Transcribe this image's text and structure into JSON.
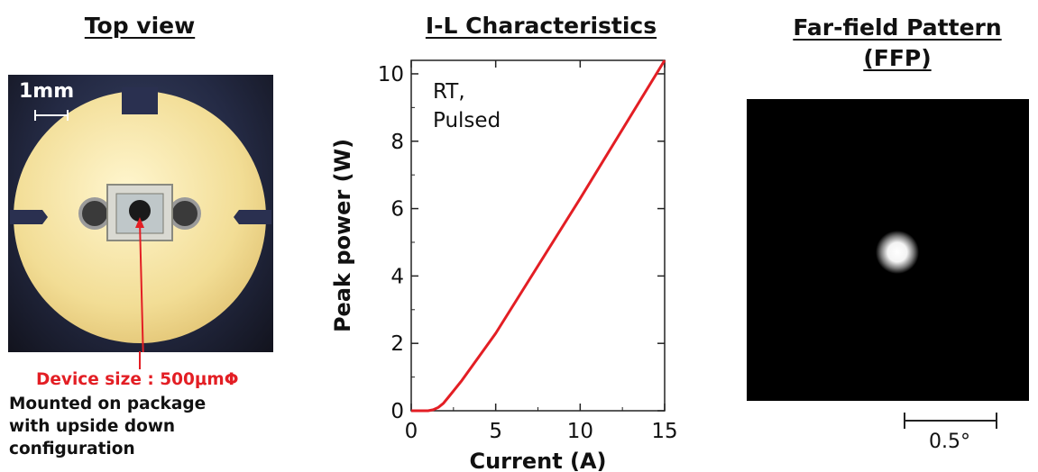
{
  "titles": {
    "top_view": "Top view",
    "il": "I-L Characteristics",
    "ffp_line1": "Far-field Pattern",
    "ffp_line2": "(FFP)"
  },
  "photo": {
    "scale_label": "1mm",
    "device_caption": "Device size : 500μmΦ",
    "mount_caption": [
      "Mounted on package",
      "with upside down",
      "configuration"
    ]
  },
  "ffp": {
    "scale_label": "0.5°"
  },
  "chart_data": {
    "type": "line",
    "title": "I-L Characteristics",
    "xlabel": "Current (A)",
    "ylabel": "Peak power (W)",
    "xlim": [
      0,
      15
    ],
    "ylim": [
      0,
      10.4
    ],
    "xticks": [
      0,
      5,
      10,
      15
    ],
    "yticks": [
      0,
      2,
      4,
      6,
      8,
      10
    ],
    "annotation": [
      "RT,",
      "Pulsed"
    ],
    "line_color": "#e31e24",
    "series": [
      {
        "x": [
          0,
          1.0,
          1.3,
          1.6,
          1.9,
          2.2,
          2.6,
          3,
          5,
          10,
          15
        ],
        "y": [
          0,
          0,
          0.03,
          0.1,
          0.22,
          0.4,
          0.65,
          0.9,
          2.3,
          6.3,
          10.4
        ]
      }
    ]
  }
}
